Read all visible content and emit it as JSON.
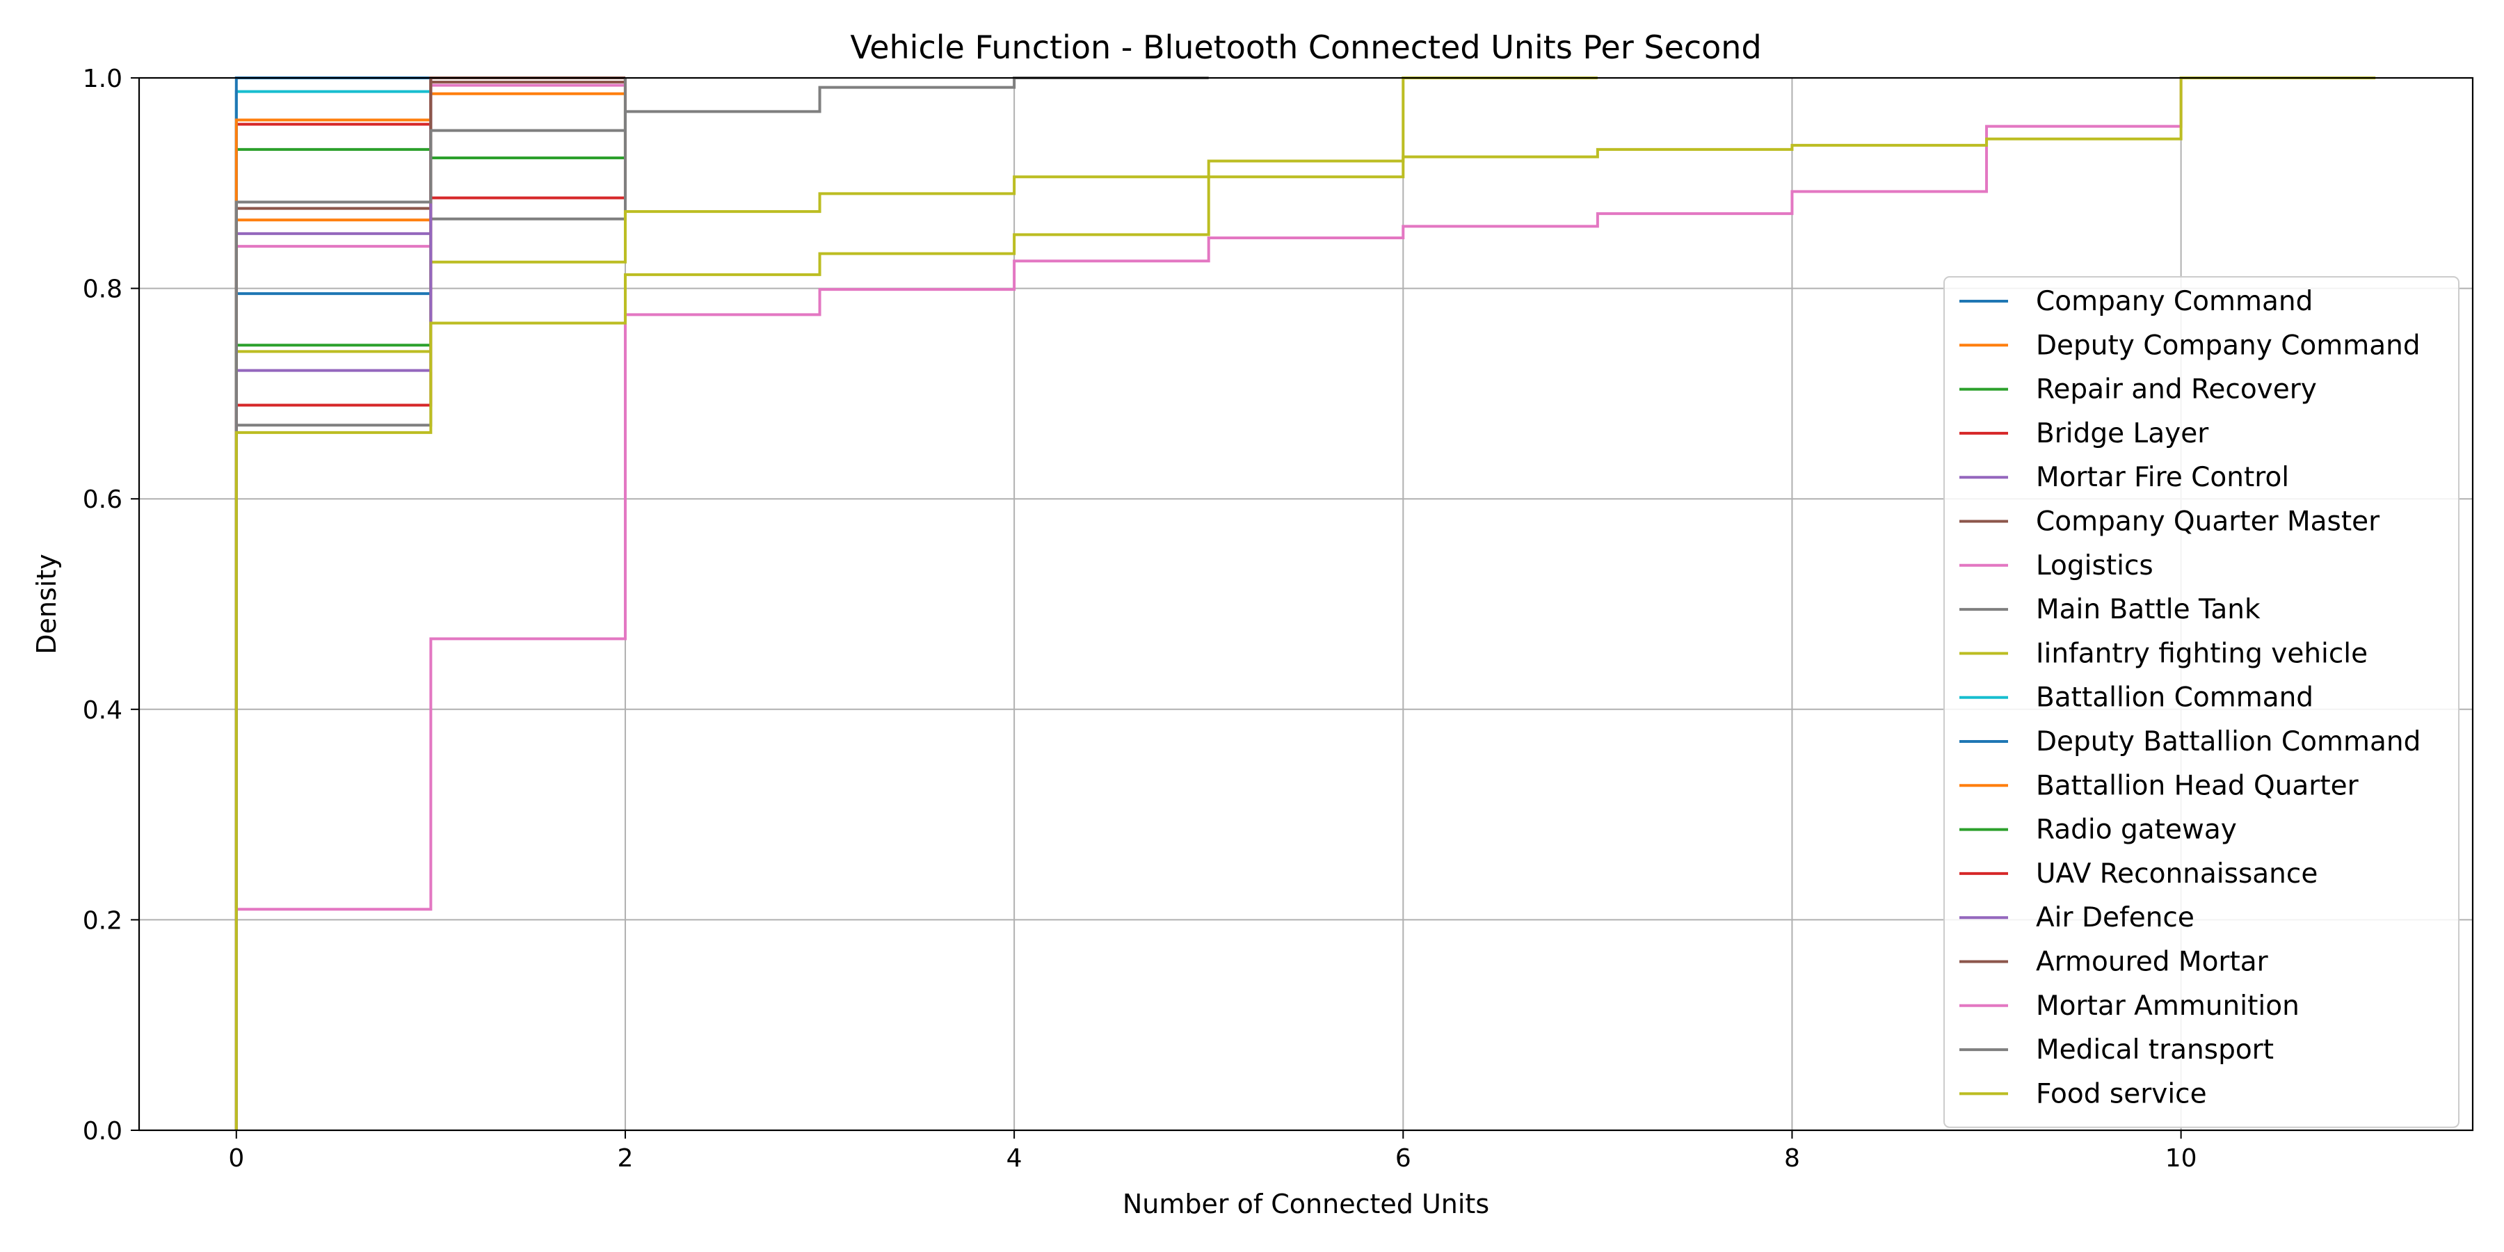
{
  "chart_data": {
    "type": "line",
    "step": "post",
    "title": "Vehicle Function - Bluetooth Connected Units Per Second",
    "xlabel": "Number of Connected Units",
    "ylabel": "Density",
    "xlim": [
      -0.5,
      11.5
    ],
    "ylim": [
      0.0,
      1.0
    ],
    "xticks": [
      0,
      2,
      4,
      6,
      8,
      10
    ],
    "yticks": [
      0.0,
      0.2,
      0.4,
      0.6,
      0.8,
      1.0
    ],
    "xtick_labels": [
      "0",
      "2",
      "4",
      "6",
      "8",
      "10"
    ],
    "ytick_labels": [
      "0.0",
      "0.2",
      "0.4",
      "0.6",
      "0.8",
      "1.0"
    ],
    "grid": true,
    "legend_position": "lower-right",
    "series": [
      {
        "name": "Company Command",
        "color": "#1f77b4",
        "x": [
          0,
          1,
          2
        ],
        "y": [
          0.795,
          1.0,
          1.0
        ]
      },
      {
        "name": "Deputy Company Command",
        "color": "#ff7f0e",
        "x": [
          0,
          1,
          2
        ],
        "y": [
          0.865,
          0.985,
          1.0
        ]
      },
      {
        "name": "Repair and Recovery",
        "color": "#2ca02c",
        "x": [
          0,
          1,
          2
        ],
        "y": [
          0.932,
          0.924,
          1.0
        ]
      },
      {
        "name": "Bridge Layer",
        "color": "#d62728",
        "x": [
          0,
          1,
          2
        ],
        "y": [
          0.956,
          0.886,
          1.0
        ]
      },
      {
        "name": "Mortar Fire Control",
        "color": "#9467bd",
        "x": [
          0,
          1,
          2
        ],
        "y": [
          0.852,
          1.0,
          1.0
        ]
      },
      {
        "name": "Company Quarter Master",
        "color": "#8c564b",
        "x": [
          0,
          1,
          2
        ],
        "y": [
          0.876,
          0.996,
          1.0
        ]
      },
      {
        "name": "Logistics",
        "color": "#e377c2",
        "x": [
          0,
          1,
          2
        ],
        "y": [
          0.84,
          0.993,
          1.0
        ]
      },
      {
        "name": "Main Battle Tank",
        "color": "#7f7f7f",
        "x": [
          0,
          1,
          2,
          3,
          4,
          5
        ],
        "y": [
          0.67,
          0.866,
          0.968,
          0.991,
          1.0,
          1.0
        ]
      },
      {
        "name": "Iinfantry fighting vehicle",
        "color": "#bcbd22",
        "x": [
          0,
          1,
          2,
          3,
          4,
          5,
          6,
          7
        ],
        "y": [
          0.74,
          0.825,
          0.873,
          0.89,
          0.906,
          0.921,
          1.0,
          1.0
        ]
      },
      {
        "name": "Battallion Command",
        "color": "#17becf",
        "x": [
          0,
          1,
          2
        ],
        "y": [
          0.987,
          1.0,
          1.0
        ]
      },
      {
        "name": "Deputy Battallion Command",
        "color": "#1f77b4",
        "x": [
          0,
          1
        ],
        "y": [
          1.0,
          1.0
        ]
      },
      {
        "name": "Battallion Head Quarter",
        "color": "#ff7f0e",
        "x": [
          0,
          1,
          2
        ],
        "y": [
          0.96,
          1.0,
          1.0
        ]
      },
      {
        "name": "Radio gateway",
        "color": "#2ca02c",
        "x": [
          0,
          1,
          2
        ],
        "y": [
          0.746,
          1.0,
          1.0
        ]
      },
      {
        "name": "UAV Reconnaissance",
        "color": "#d62728",
        "x": [
          0,
          1,
          2
        ],
        "y": [
          0.689,
          1.0,
          1.0
        ]
      },
      {
        "name": "Air Defence",
        "color": "#9467bd",
        "x": [
          0,
          1,
          2
        ],
        "y": [
          0.722,
          1.0,
          1.0
        ]
      },
      {
        "name": "Armoured Mortar",
        "color": "#8c564b",
        "x": [
          0,
          1,
          2
        ],
        "y": [
          0.882,
          1.0,
          1.0
        ]
      },
      {
        "name": "Mortar Ammunition",
        "color": "#e377c2",
        "x": [
          0,
          1,
          2,
          3,
          4,
          5,
          6,
          7,
          8,
          9,
          10
        ],
        "y": [
          0.21,
          0.467,
          0.775,
          0.799,
          0.826,
          0.848,
          0.859,
          0.871,
          0.892,
          0.954,
          1.0
        ]
      },
      {
        "name": "Medical transport",
        "color": "#7f7f7f",
        "x": [
          0,
          1,
          2
        ],
        "y": [
          0.882,
          0.95,
          1.0
        ]
      },
      {
        "name": "Food service",
        "color": "#bcbd22",
        "x": [
          0,
          1,
          2,
          3,
          4,
          5,
          6,
          7,
          8,
          9,
          10,
          11
        ],
        "y": [
          0.663,
          0.767,
          0.813,
          0.833,
          0.851,
          0.906,
          0.925,
          0.932,
          0.936,
          0.942,
          1.0,
          1.0
        ]
      }
    ]
  }
}
